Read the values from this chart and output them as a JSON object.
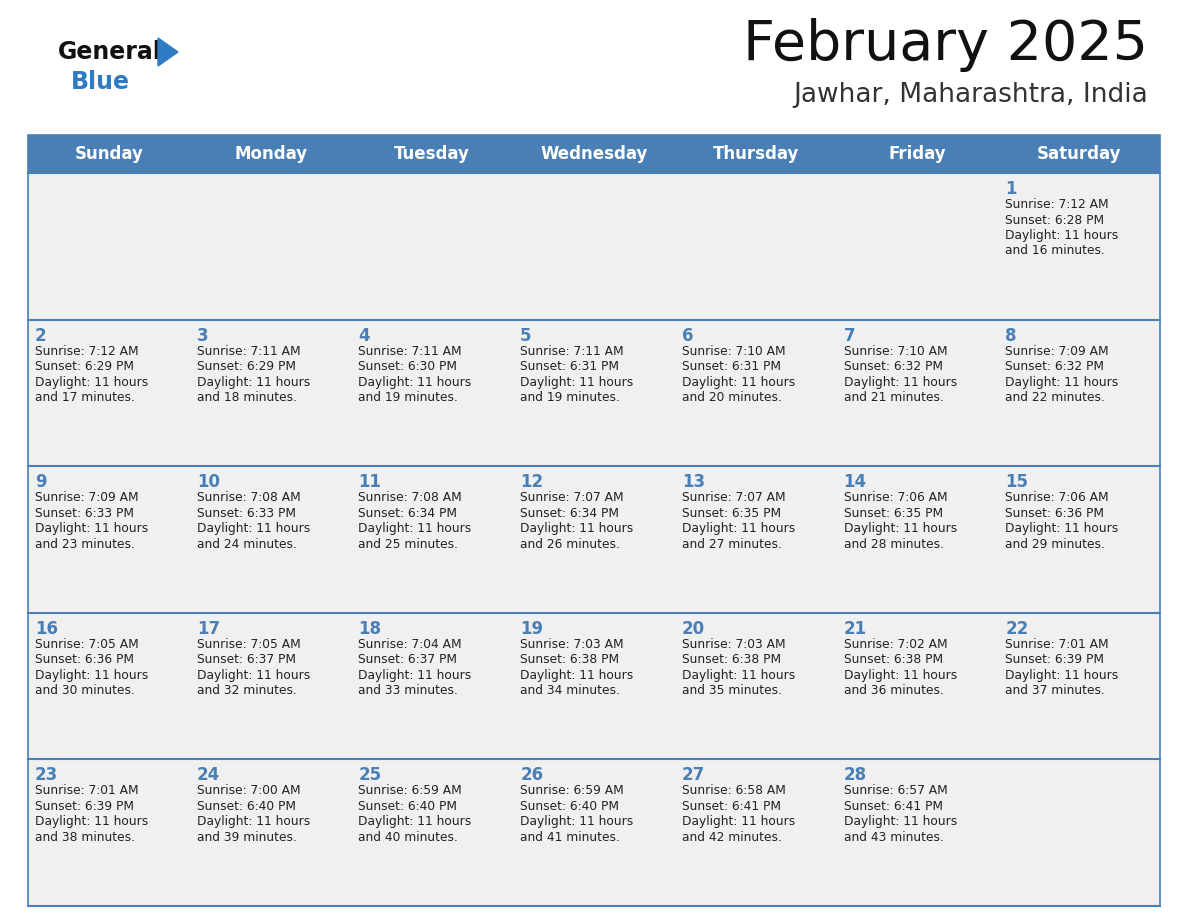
{
  "title": "February 2025",
  "subtitle": "Jawhar, Maharashtra, India",
  "days_of_week": [
    "Sunday",
    "Monday",
    "Tuesday",
    "Wednesday",
    "Thursday",
    "Friday",
    "Saturday"
  ],
  "header_bg": "#4a7fb5",
  "header_text": "#ffffff",
  "cell_bg_light": "#f0f0f0",
  "cell_bg_white": "#ffffff",
  "day_num_color": "#4a7fb5",
  "text_color": "#222222",
  "border_color": "#4a7fb5",
  "row_separator_color": "#4a7fb5",
  "title_color": "#111111",
  "subtitle_color": "#333333",
  "logo_general_color": "#111111",
  "logo_blue_color": "#2e7bc4",
  "calendar_data": [
    {
      "day": 1,
      "row": 0,
      "col": 6,
      "sunrise": "7:12 AM",
      "sunset": "6:28 PM",
      "daylight_hours": 11,
      "daylight_minutes": 16
    },
    {
      "day": 2,
      "row": 1,
      "col": 0,
      "sunrise": "7:12 AM",
      "sunset": "6:29 PM",
      "daylight_hours": 11,
      "daylight_minutes": 17
    },
    {
      "day": 3,
      "row": 1,
      "col": 1,
      "sunrise": "7:11 AM",
      "sunset": "6:29 PM",
      "daylight_hours": 11,
      "daylight_minutes": 18
    },
    {
      "day": 4,
      "row": 1,
      "col": 2,
      "sunrise": "7:11 AM",
      "sunset": "6:30 PM",
      "daylight_hours": 11,
      "daylight_minutes": 19
    },
    {
      "day": 5,
      "row": 1,
      "col": 3,
      "sunrise": "7:11 AM",
      "sunset": "6:31 PM",
      "daylight_hours": 11,
      "daylight_minutes": 19
    },
    {
      "day": 6,
      "row": 1,
      "col": 4,
      "sunrise": "7:10 AM",
      "sunset": "6:31 PM",
      "daylight_hours": 11,
      "daylight_minutes": 20
    },
    {
      "day": 7,
      "row": 1,
      "col": 5,
      "sunrise": "7:10 AM",
      "sunset": "6:32 PM",
      "daylight_hours": 11,
      "daylight_minutes": 21
    },
    {
      "day": 8,
      "row": 1,
      "col": 6,
      "sunrise": "7:09 AM",
      "sunset": "6:32 PM",
      "daylight_hours": 11,
      "daylight_minutes": 22
    },
    {
      "day": 9,
      "row": 2,
      "col": 0,
      "sunrise": "7:09 AM",
      "sunset": "6:33 PM",
      "daylight_hours": 11,
      "daylight_minutes": 23
    },
    {
      "day": 10,
      "row": 2,
      "col": 1,
      "sunrise": "7:08 AM",
      "sunset": "6:33 PM",
      "daylight_hours": 11,
      "daylight_minutes": 24
    },
    {
      "day": 11,
      "row": 2,
      "col": 2,
      "sunrise": "7:08 AM",
      "sunset": "6:34 PM",
      "daylight_hours": 11,
      "daylight_minutes": 25
    },
    {
      "day": 12,
      "row": 2,
      "col": 3,
      "sunrise": "7:07 AM",
      "sunset": "6:34 PM",
      "daylight_hours": 11,
      "daylight_minutes": 26
    },
    {
      "day": 13,
      "row": 2,
      "col": 4,
      "sunrise": "7:07 AM",
      "sunset": "6:35 PM",
      "daylight_hours": 11,
      "daylight_minutes": 27
    },
    {
      "day": 14,
      "row": 2,
      "col": 5,
      "sunrise": "7:06 AM",
      "sunset": "6:35 PM",
      "daylight_hours": 11,
      "daylight_minutes": 28
    },
    {
      "day": 15,
      "row": 2,
      "col": 6,
      "sunrise": "7:06 AM",
      "sunset": "6:36 PM",
      "daylight_hours": 11,
      "daylight_minutes": 29
    },
    {
      "day": 16,
      "row": 3,
      "col": 0,
      "sunrise": "7:05 AM",
      "sunset": "6:36 PM",
      "daylight_hours": 11,
      "daylight_minutes": 30
    },
    {
      "day": 17,
      "row": 3,
      "col": 1,
      "sunrise": "7:05 AM",
      "sunset": "6:37 PM",
      "daylight_hours": 11,
      "daylight_minutes": 32
    },
    {
      "day": 18,
      "row": 3,
      "col": 2,
      "sunrise": "7:04 AM",
      "sunset": "6:37 PM",
      "daylight_hours": 11,
      "daylight_minutes": 33
    },
    {
      "day": 19,
      "row": 3,
      "col": 3,
      "sunrise": "7:03 AM",
      "sunset": "6:38 PM",
      "daylight_hours": 11,
      "daylight_minutes": 34
    },
    {
      "day": 20,
      "row": 3,
      "col": 4,
      "sunrise": "7:03 AM",
      "sunset": "6:38 PM",
      "daylight_hours": 11,
      "daylight_minutes": 35
    },
    {
      "day": 21,
      "row": 3,
      "col": 5,
      "sunrise": "7:02 AM",
      "sunset": "6:38 PM",
      "daylight_hours": 11,
      "daylight_minutes": 36
    },
    {
      "day": 22,
      "row": 3,
      "col": 6,
      "sunrise": "7:01 AM",
      "sunset": "6:39 PM",
      "daylight_hours": 11,
      "daylight_minutes": 37
    },
    {
      "day": 23,
      "row": 4,
      "col": 0,
      "sunrise": "7:01 AM",
      "sunset": "6:39 PM",
      "daylight_hours": 11,
      "daylight_minutes": 38
    },
    {
      "day": 24,
      "row": 4,
      "col": 1,
      "sunrise": "7:00 AM",
      "sunset": "6:40 PM",
      "daylight_hours": 11,
      "daylight_minutes": 39
    },
    {
      "day": 25,
      "row": 4,
      "col": 2,
      "sunrise": "6:59 AM",
      "sunset": "6:40 PM",
      "daylight_hours": 11,
      "daylight_minutes": 40
    },
    {
      "day": 26,
      "row": 4,
      "col": 3,
      "sunrise": "6:59 AM",
      "sunset": "6:40 PM",
      "daylight_hours": 11,
      "daylight_minutes": 41
    },
    {
      "day": 27,
      "row": 4,
      "col": 4,
      "sunrise": "6:58 AM",
      "sunset": "6:41 PM",
      "daylight_hours": 11,
      "daylight_minutes": 42
    },
    {
      "day": 28,
      "row": 4,
      "col": 5,
      "sunrise": "6:57 AM",
      "sunset": "6:41 PM",
      "daylight_hours": 11,
      "daylight_minutes": 43
    }
  ],
  "num_rows": 5,
  "num_cols": 7,
  "fig_width": 11.88,
  "fig_height": 9.18,
  "dpi": 100
}
